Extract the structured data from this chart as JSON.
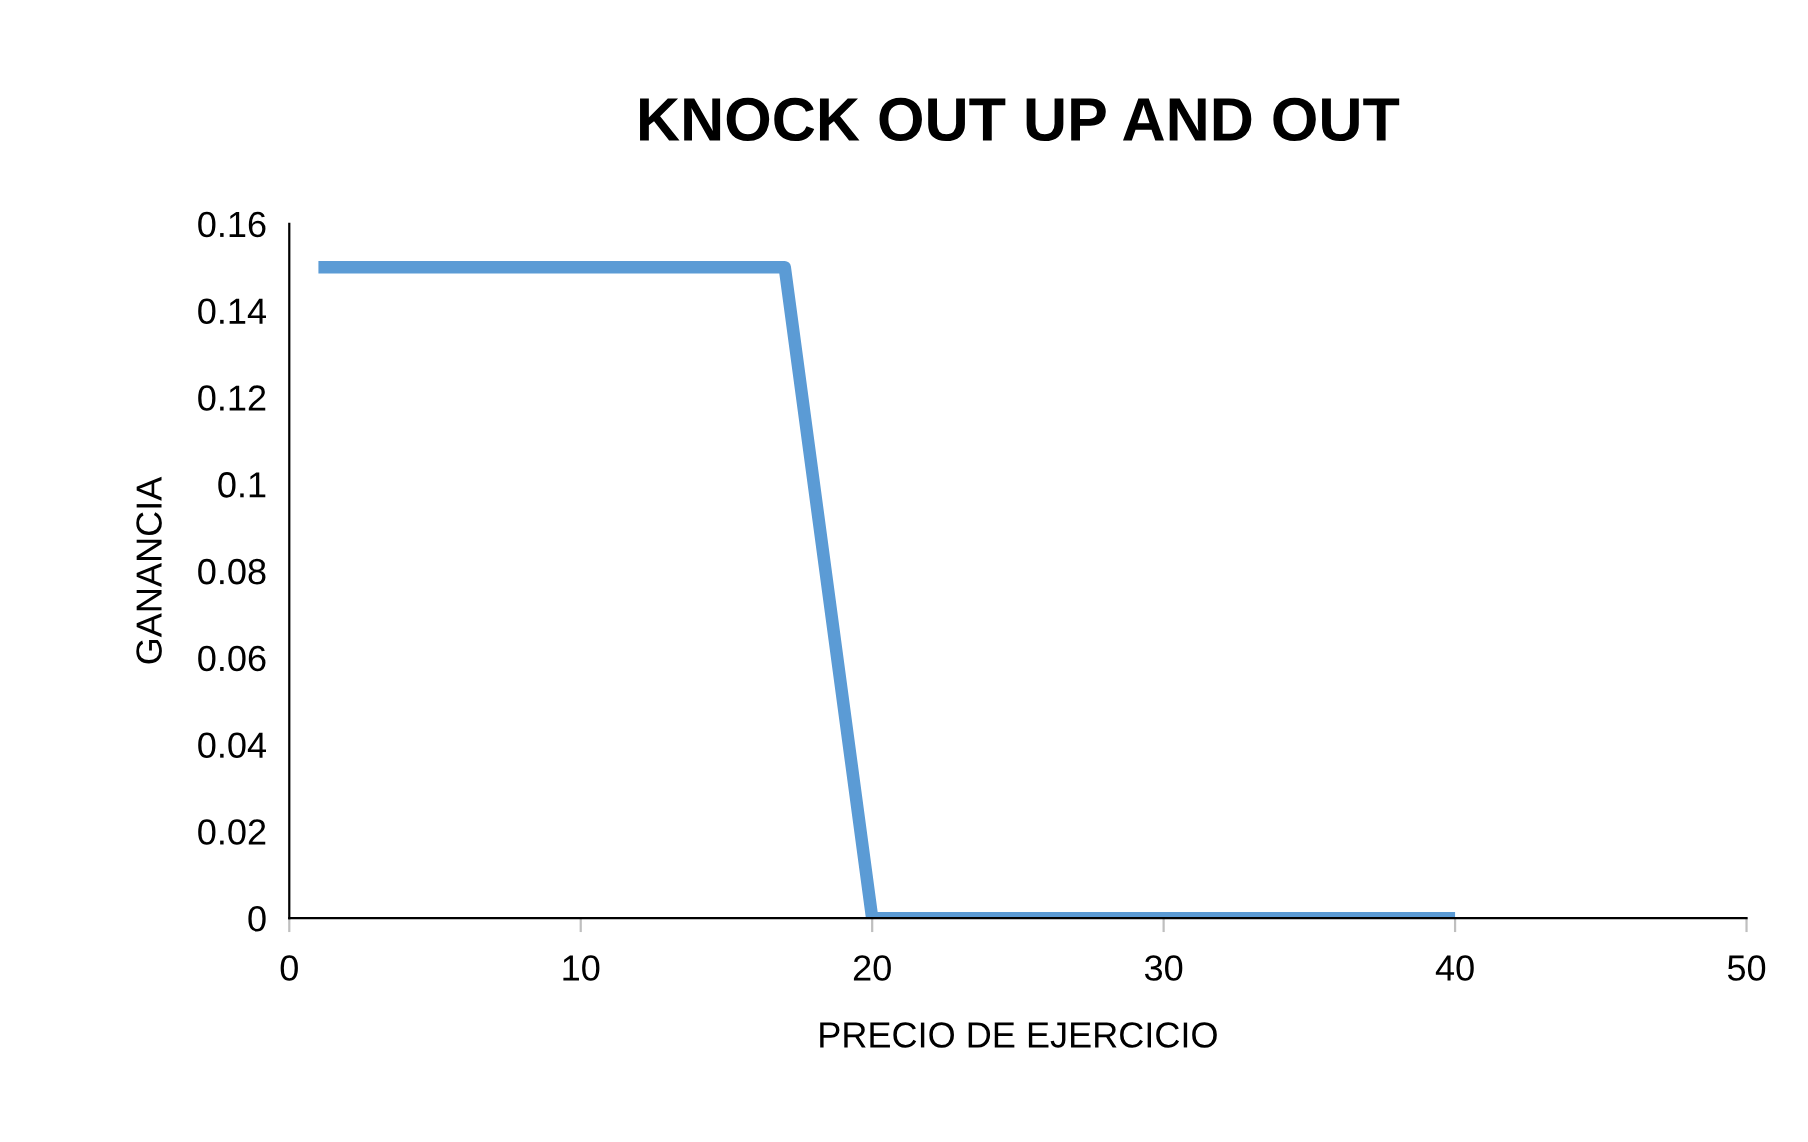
{
  "chart_data": {
    "type": "line",
    "title": "KNOCK OUT UP AND OUT",
    "xlabel": "PRECIO DE EJERCICIO",
    "ylabel": "GANANCIA",
    "x": [
      1,
      17,
      20,
      40
    ],
    "series": [
      {
        "color": "#5b9bd5",
        "values": [
          0.15,
          0.15,
          0,
          0
        ]
      }
    ],
    "xlim": [
      0,
      50
    ],
    "xticks": [
      0,
      10,
      20,
      30,
      40,
      50
    ],
    "ylim": [
      0,
      0.16
    ],
    "yticks": [
      0,
      0.02,
      0.04,
      0.06,
      0.08,
      0.1,
      0.12,
      0.14,
      0.16
    ],
    "grid": false,
    "marker": "none",
    "line_style": "solid"
  }
}
